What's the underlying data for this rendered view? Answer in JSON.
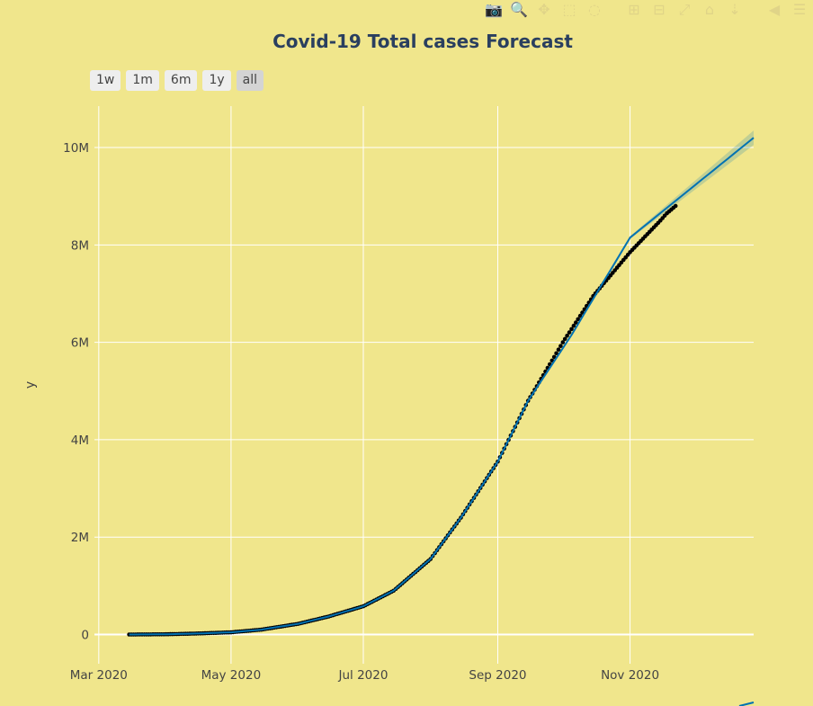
{
  "modebar": {
    "icons": [
      "camera-icon",
      "zoom-icon",
      "pan-icon",
      "box-select-icon",
      "lasso-icon",
      "zoom-in-icon",
      "zoom-out-icon",
      "autoscale-icon",
      "reset-axes-icon",
      "spike-lines-icon",
      "hover-closest-icon",
      "hover-compare-icon"
    ],
    "glyphs": [
      "📷",
      "🔍",
      "✥",
      "⬚",
      "◌",
      "⊞",
      "⊟",
      "⤢",
      "⌂",
      "⇣",
      "◀",
      "☰"
    ]
  },
  "colors": {
    "background": "#f0e68c",
    "grid": "#ffffff",
    "observed": "#000000",
    "forecast": "#0072b2",
    "uncertainty": "#0072b2"
  },
  "range_buttons": [
    "1w",
    "1m",
    "6m",
    "1y",
    "all"
  ],
  "active_range": "all",
  "chart_data": {
    "type": "line",
    "title": "Covid-19 Total cases Forecast",
    "ylabel": "y",
    "xlabel": "",
    "x_ticks": [
      "2020-03-01",
      "2020-05-01",
      "2020-07-01",
      "2020-09-01",
      "2020-11-01"
    ],
    "x_tick_labels": [
      "Mar 2020",
      "May 2020",
      "Jul 2020",
      "Sep 2020",
      "Nov 2020"
    ],
    "y_ticks": [
      0,
      2000000,
      4000000,
      6000000,
      8000000,
      10000000
    ],
    "y_tick_labels": [
      "0",
      "2M",
      "4M",
      "6M",
      "8M",
      "10M"
    ],
    "xlim": [
      "2020-02-28",
      "2020-12-28"
    ],
    "ylim": [
      -600000,
      10850000
    ],
    "grid": true,
    "series": [
      {
        "kind": "markers",
        "points": [
          [
            "2020-03-15",
            0
          ],
          [
            "2020-04-01",
            5000
          ],
          [
            "2020-04-15",
            20000
          ],
          [
            "2020-05-01",
            45000
          ],
          [
            "2020-05-15",
            100000
          ],
          [
            "2020-06-01",
            220000
          ],
          [
            "2020-06-15",
            370000
          ],
          [
            "2020-07-01",
            580000
          ],
          [
            "2020-07-15",
            900000
          ],
          [
            "2020-08-01",
            1550000
          ],
          [
            "2020-08-15",
            2400000
          ],
          [
            "2020-09-01",
            3550000
          ],
          [
            "2020-09-15",
            4800000
          ],
          [
            "2020-10-01",
            6000000
          ],
          [
            "2020-10-15",
            6950000
          ],
          [
            "2020-11-01",
            7850000
          ],
          [
            "2020-11-15",
            8500000
          ],
          [
            "2020-11-18",
            8650000
          ],
          [
            "2020-11-22",
            8800000
          ]
        ]
      },
      {
        "kind": "line",
        "points": [
          [
            "2020-03-15",
            0
          ],
          [
            "2020-04-01",
            5000
          ],
          [
            "2020-04-15",
            20000
          ],
          [
            "2020-05-01",
            45000
          ],
          [
            "2020-05-15",
            100000
          ],
          [
            "2020-06-01",
            220000
          ],
          [
            "2020-06-15",
            370000
          ],
          [
            "2020-07-01",
            580000
          ],
          [
            "2020-07-15",
            900000
          ],
          [
            "2020-08-01",
            1550000
          ],
          [
            "2020-08-15",
            2400000
          ],
          [
            "2020-09-01",
            3550000
          ],
          [
            "2020-09-15",
            4800000
          ],
          [
            "2020-10-05",
            6150000
          ],
          [
            "2020-11-01",
            8150000
          ],
          [
            "2020-12-28",
            10200000
          ]
        ]
      },
      {
        "kind": "band",
        "upper": [
          [
            "2020-10-05",
            6170000
          ],
          [
            "2020-11-01",
            8180000
          ],
          [
            "2020-12-28",
            10350000
          ]
        ],
        "lower": [
          [
            "2020-10-05",
            6130000
          ],
          [
            "2020-11-01",
            8120000
          ],
          [
            "2020-12-28",
            10050000
          ]
        ]
      }
    ]
  }
}
